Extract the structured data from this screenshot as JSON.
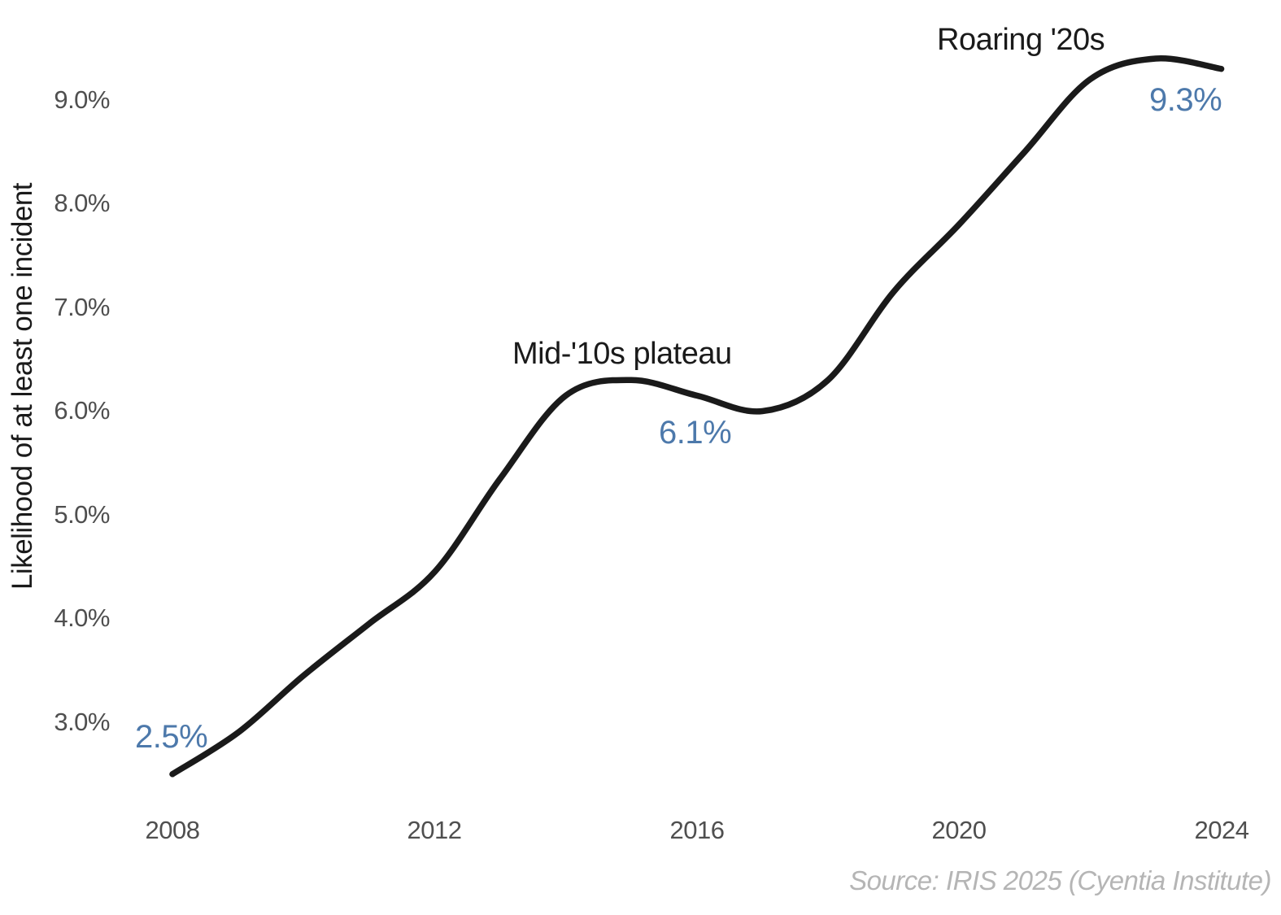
{
  "chart": {
    "y_axis_title": "Likelihood of at least one incident",
    "source_note": "Source: IRIS 2025 (Cyentia Institute)",
    "colors": {
      "line": "#1a1a1a",
      "accent_blue": "#4d79ab",
      "tick_gray": "#4f4f4f",
      "source_gray": "#b5b5b5",
      "background": "#ffffff"
    }
  },
  "chart_data": {
    "type": "line",
    "title": "",
    "xlabel": "",
    "ylabel": "Likelihood of at least one incident",
    "x": [
      2008,
      2009,
      2010,
      2011,
      2012,
      2013,
      2014,
      2015,
      2016,
      2017,
      2018,
      2019,
      2020,
      2021,
      2022,
      2023,
      2024
    ],
    "values": [
      2.5,
      2.9,
      3.45,
      3.95,
      4.45,
      5.35,
      6.15,
      6.3,
      6.15,
      6.0,
      6.3,
      7.15,
      7.8,
      8.5,
      9.2,
      9.4,
      9.3
    ],
    "xlim": [
      2008,
      2024
    ],
    "ylim": [
      2.3,
      9.7
    ],
    "xticks": [
      "2008",
      "2012",
      "2016",
      "2020",
      "2024"
    ],
    "yticks": [
      "9.0%",
      "8.0%",
      "7.0%",
      "6.0%",
      "5.0%",
      "4.0%",
      "3.0%"
    ],
    "ytick_values": [
      9.0,
      8.0,
      7.0,
      6.0,
      5.0,
      4.0,
      3.0
    ],
    "grid": false,
    "legend": "none",
    "annotations": [
      {
        "x": 2008,
        "y": 2.5,
        "text": "2.5%",
        "style": "blue-value"
      },
      {
        "x": 2015,
        "y": 6.3,
        "text": "Mid-'10s plateau",
        "style": "black-label"
      },
      {
        "x": 2016,
        "y": 6.1,
        "text": "6.1%",
        "style": "blue-value"
      },
      {
        "x": 2021.5,
        "y": 9.6,
        "text": "Roaring '20s",
        "style": "black-label"
      },
      {
        "x": 2023.5,
        "y": 9.3,
        "text": "9.3%",
        "style": "blue-value"
      }
    ]
  }
}
